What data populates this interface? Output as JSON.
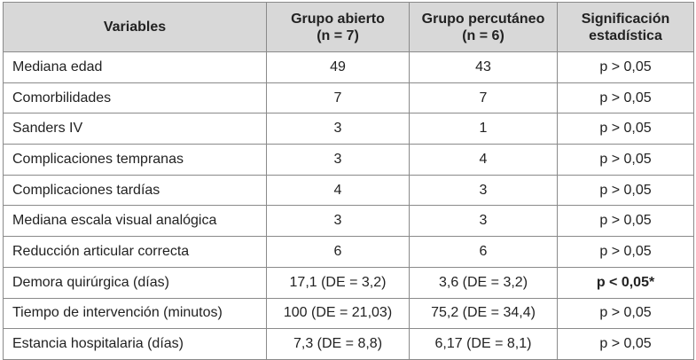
{
  "table": {
    "headers": {
      "variables": "Variables",
      "open_line1": "Grupo abierto",
      "open_line2": "(n = 7)",
      "perc_line1": "Grupo percutáneo",
      "perc_line2": "(n = 6)",
      "sig_line1": "Significación",
      "sig_line2": "estadística"
    },
    "rows": [
      {
        "variable": "Mediana edad",
        "open": "49",
        "perc": "43",
        "sig": "p > 0,05"
      },
      {
        "variable": "Comorbilidades",
        "open": "7",
        "perc": "7",
        "sig": "p > 0,05"
      },
      {
        "variable": "Sanders IV",
        "open": "3",
        "perc": "1",
        "sig": "p > 0,05"
      },
      {
        "variable": "Complicaciones tempranas",
        "open": "3",
        "perc": "4",
        "sig": "p > 0,05"
      },
      {
        "variable": "Complicaciones tardías",
        "open": "4",
        "perc": "3",
        "sig": "p > 0,05"
      },
      {
        "variable": "Mediana escala visual analógica",
        "open": "3",
        "perc": "3",
        "sig": "p > 0,05"
      },
      {
        "variable": "Reducción articular correcta",
        "open": "6",
        "perc": "6",
        "sig": "p > 0,05"
      },
      {
        "variable": "Demora quirúrgica (días)",
        "open": "17,1 (DE = 3,2)",
        "perc": "3,6 (DE = 3,2)",
        "sig": "p < 0,05*",
        "sig_bold": true
      },
      {
        "variable": "Tiempo de intervención (minutos)",
        "open": "100 (DE = 21,03)",
        "perc": "75,2 (DE = 34,4)",
        "sig": "p > 0,05"
      },
      {
        "variable": "Estancia hospitalaria (días)",
        "open": "7,3 (DE = 8,8)",
        "perc": "6,17 (DE = 8,1)",
        "sig": "p > 0,05"
      }
    ]
  }
}
